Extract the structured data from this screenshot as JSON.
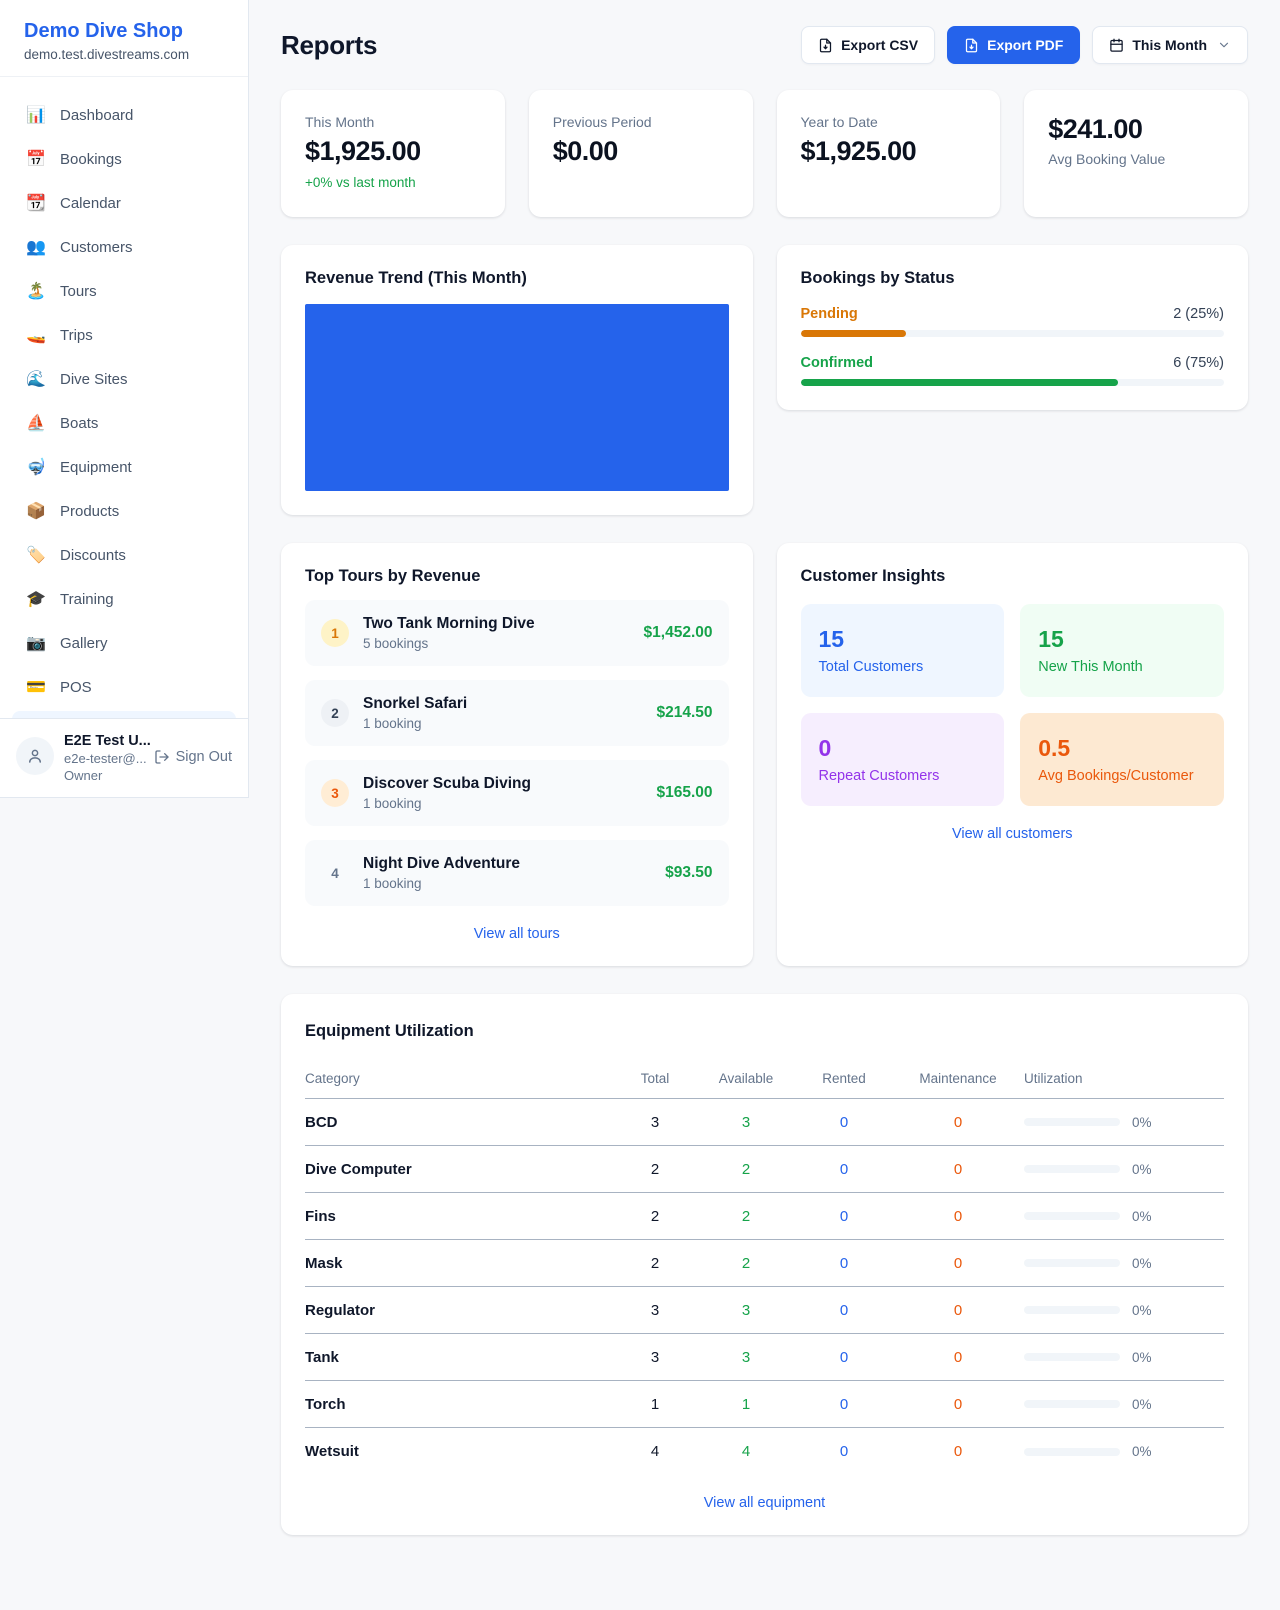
{
  "sidebar": {
    "shop_name": "Demo Dive Shop",
    "shop_domain": "demo.test.divestreams.com",
    "items": [
      {
        "emoji": "📊",
        "label": "Dashboard"
      },
      {
        "emoji": "📅",
        "label": "Bookings"
      },
      {
        "emoji": "📆",
        "label": "Calendar"
      },
      {
        "emoji": "👥",
        "label": "Customers"
      },
      {
        "emoji": "🏝️",
        "label": "Tours"
      },
      {
        "emoji": "🚤",
        "label": "Trips"
      },
      {
        "emoji": "🌊",
        "label": "Dive Sites"
      },
      {
        "emoji": "⛵",
        "label": "Boats"
      },
      {
        "emoji": "🤿",
        "label": "Equipment"
      },
      {
        "emoji": "📦",
        "label": "Products"
      },
      {
        "emoji": "🏷️",
        "label": "Discounts"
      },
      {
        "emoji": "🎓",
        "label": "Training"
      },
      {
        "emoji": "📷",
        "label": "Gallery"
      },
      {
        "emoji": "💳",
        "label": "POS"
      }
    ],
    "user": {
      "name": "E2E Test U...",
      "email": "e2e-tester@...",
      "role": "Owner",
      "sign_out_label": "Sign Out"
    }
  },
  "header": {
    "title": "Reports",
    "export_csv_label": "Export CSV",
    "export_pdf_label": "Export PDF",
    "period_label": "This Month"
  },
  "stats": [
    {
      "label": "This Month",
      "value": "$1,925.00",
      "delta": "+0% vs last month"
    },
    {
      "label": "Previous Period",
      "value": "$0.00"
    },
    {
      "label": "Year to Date",
      "value": "$1,925.00"
    },
    {
      "label": "Avg Booking Value",
      "value": "$241.00"
    }
  ],
  "revenue_trend": {
    "title": "Revenue Trend (This Month)"
  },
  "bookings_by_status": {
    "title": "Bookings by Status",
    "rows": [
      {
        "label": "Pending",
        "count_text": "2 (25%)",
        "pct": 25,
        "color": "#d97706"
      },
      {
        "label": "Confirmed",
        "count_text": "6 (75%)",
        "pct": 75,
        "color": "#16a34a"
      }
    ]
  },
  "top_tours": {
    "title": "Top Tours by Revenue",
    "view_all_label": "View all tours",
    "items": [
      {
        "rank": "1",
        "name": "Two Tank Morning Dive",
        "bookings": "5 bookings",
        "revenue": "$1,452.00"
      },
      {
        "rank": "2",
        "name": "Snorkel Safari",
        "bookings": "1 booking",
        "revenue": "$214.50"
      },
      {
        "rank": "3",
        "name": "Discover Scuba Diving",
        "bookings": "1 booking",
        "revenue": "$165.00"
      },
      {
        "rank": "4",
        "name": "Night Dive Adventure",
        "bookings": "1 booking",
        "revenue": "$93.50"
      }
    ]
  },
  "customer_insights": {
    "title": "Customer Insights",
    "view_all_label": "View all customers",
    "tiles": [
      {
        "value": "15",
        "label": "Total Customers",
        "theme": "blue"
      },
      {
        "value": "15",
        "label": "New This Month",
        "theme": "green"
      },
      {
        "value": "0",
        "label": "Repeat Customers",
        "theme": "purple"
      },
      {
        "value": "0.5",
        "label": "Avg Bookings/Customer",
        "theme": "orange"
      }
    ]
  },
  "equipment": {
    "title": "Equipment Utilization",
    "view_all_label": "View all equipment",
    "columns": [
      "Category",
      "Total",
      "Available",
      "Rented",
      "Maintenance",
      "Utilization"
    ],
    "rows": [
      {
        "category": "BCD",
        "total": "3",
        "available": "3",
        "rented": "0",
        "maintenance": "0",
        "utilization": "0%",
        "pct": 0
      },
      {
        "category": "Dive Computer",
        "total": "2",
        "available": "2",
        "rented": "0",
        "maintenance": "0",
        "utilization": "0%",
        "pct": 0
      },
      {
        "category": "Fins",
        "total": "2",
        "available": "2",
        "rented": "0",
        "maintenance": "0",
        "utilization": "0%",
        "pct": 0
      },
      {
        "category": "Mask",
        "total": "2",
        "available": "2",
        "rented": "0",
        "maintenance": "0",
        "utilization": "0%",
        "pct": 0
      },
      {
        "category": "Regulator",
        "total": "3",
        "available": "3",
        "rented": "0",
        "maintenance": "0",
        "utilization": "0%",
        "pct": 0
      },
      {
        "category": "Tank",
        "total": "3",
        "available": "3",
        "rented": "0",
        "maintenance": "0",
        "utilization": "0%",
        "pct": 0
      },
      {
        "category": "Torch",
        "total": "1",
        "available": "1",
        "rented": "0",
        "maintenance": "0",
        "utilization": "0%",
        "pct": 0
      },
      {
        "category": "Wetsuit",
        "total": "4",
        "available": "4",
        "rented": "0",
        "maintenance": "0",
        "utilization": "0%",
        "pct": 0
      }
    ]
  },
  "colors": {
    "accent_blue": "#2563eb",
    "success_green": "#16a34a",
    "pending_orange": "#d97706",
    "maintenance_orange": "#ea580c",
    "repeat_purple": "#9333ea"
  }
}
